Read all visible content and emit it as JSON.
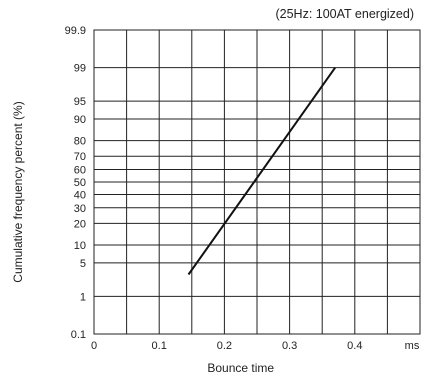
{
  "chart_data": {
    "type": "line",
    "title": "",
    "subtitle": "(25Hz: 100AT energized)",
    "xlabel": "Bounce time",
    "ylabel": "Cumulative frequency percent (%)",
    "x_unit_label": "ms",
    "y_scale": "normal-probability",
    "xlim": [
      0,
      0.5
    ],
    "x_ticks": [
      0,
      0.1,
      0.2,
      0.3,
      0.4
    ],
    "x_tick_labels": [
      "0",
      "0.1",
      "0.2",
      "0.3",
      "0.4"
    ],
    "y_ticks": [
      0.1,
      1,
      5,
      10,
      20,
      30,
      40,
      50,
      60,
      70,
      80,
      90,
      95,
      99,
      99.9
    ],
    "y_tick_labels": [
      "0.1",
      "1",
      "5",
      "10",
      "20",
      "30",
      "40",
      "50",
      "60",
      "70",
      "80",
      "90",
      "95",
      "99",
      "99.9"
    ],
    "grid": true,
    "series": [
      {
        "x": [
          0.145,
          0.37
        ],
        "y": [
          3,
          99
        ]
      }
    ]
  }
}
